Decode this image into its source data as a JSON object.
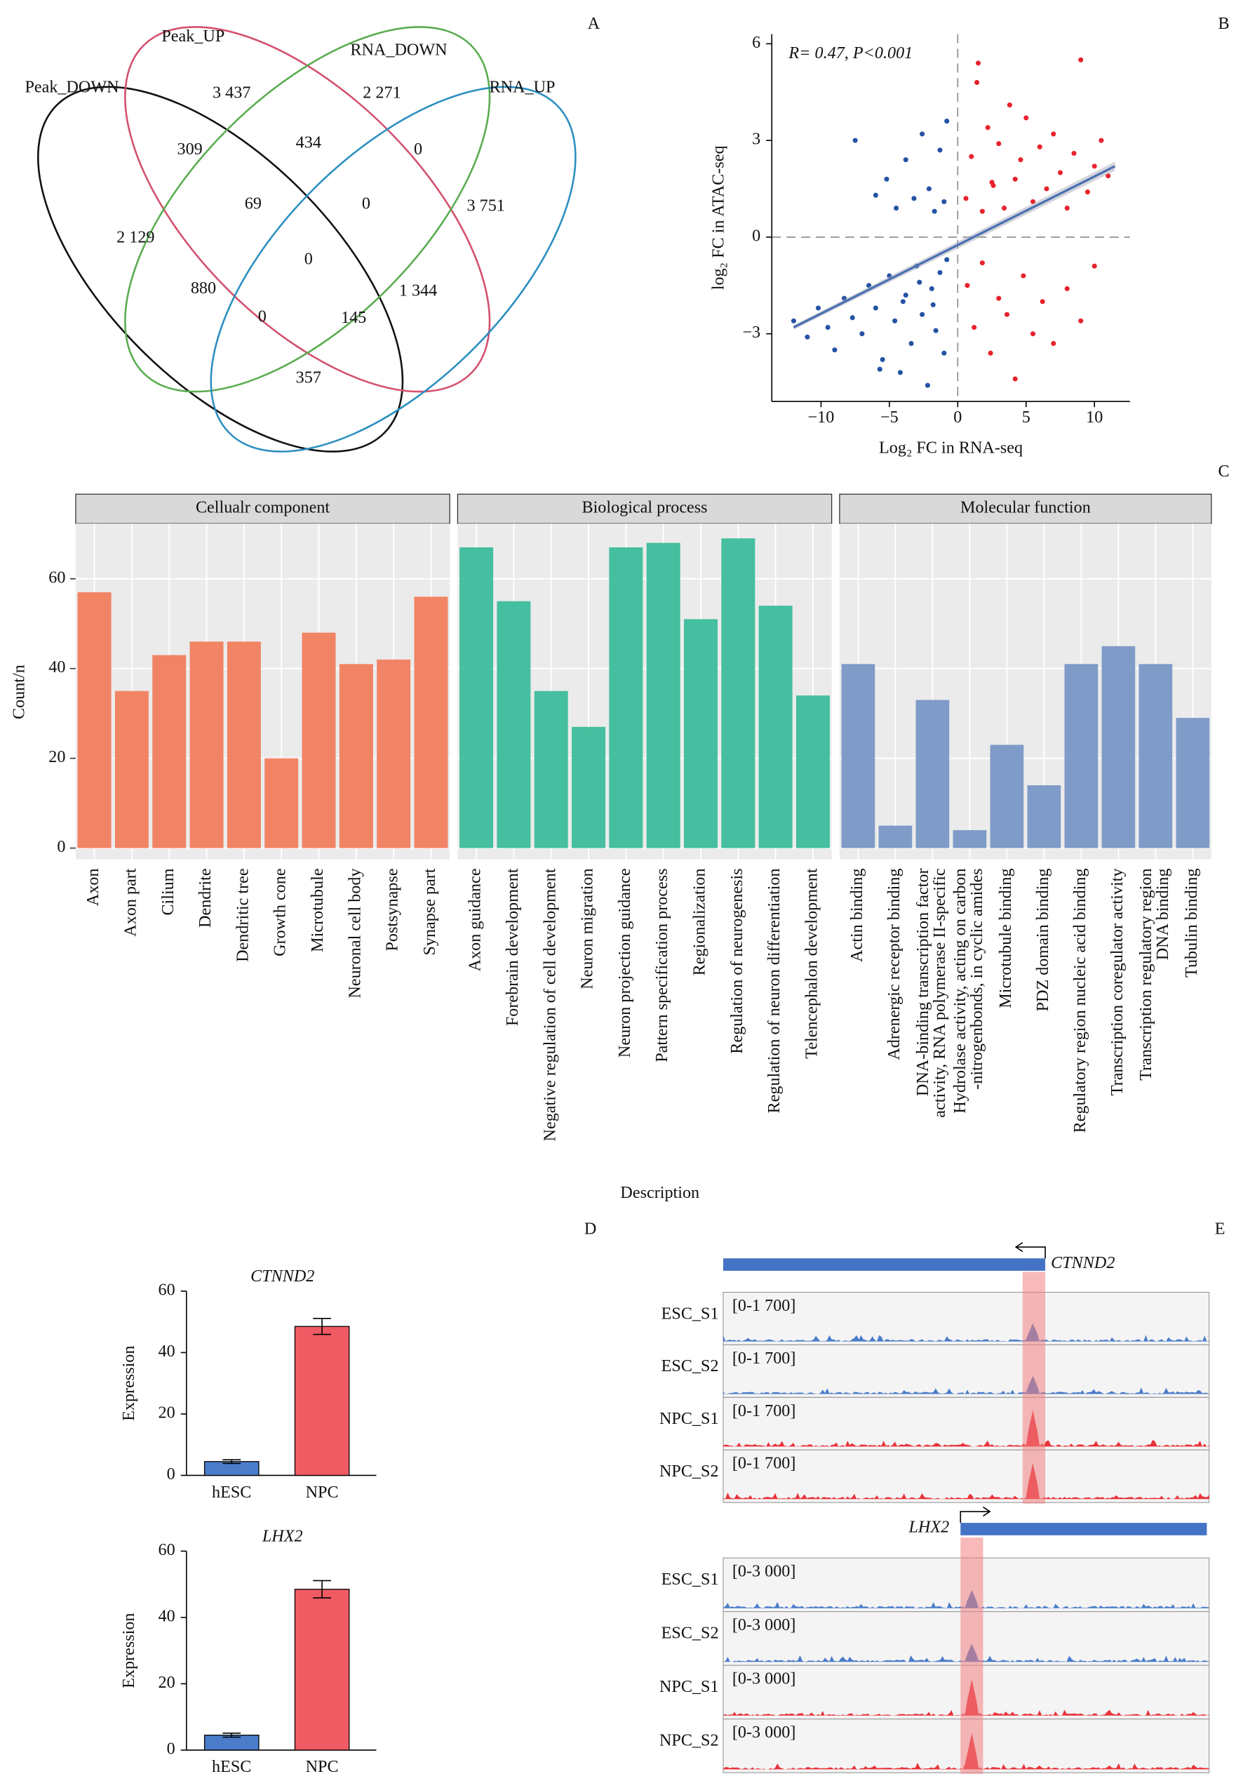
{
  "panel_labels": [
    "A",
    "B",
    "C",
    "D",
    "E"
  ],
  "chart_data": [
    {
      "type": "venn",
      "sets": [
        {
          "name": "Peak_DOWN",
          "color": "#111111"
        },
        {
          "name": "Peak_UP",
          "color": "#d4506e"
        },
        {
          "name": "RNA_DOWN",
          "color": "#5aac50"
        },
        {
          "name": "RNA_UP",
          "color": "#2b8fc0"
        }
      ],
      "values": [
        3437,
        2271,
        309,
        434,
        0,
        69,
        0,
        3751,
        2129,
        0,
        880,
        0,
        145,
        1344,
        357
      ],
      "value_labels": [
        "3 437",
        "2 271",
        "309",
        "434",
        "0",
        "69",
        "0",
        "3 751",
        "2 129",
        "0",
        "880",
        "0",
        "145",
        "1 344",
        "357"
      ]
    },
    {
      "type": "scatter",
      "annotation": "R= 0.47, P<0.001",
      "x_label": "Log₂ FC in RNA-seq",
      "y_label": "log₂ FC in ATAC-seq",
      "xlim": [
        -13.6,
        12.6
      ],
      "ylim": [
        -5.1,
        6.3
      ],
      "xticks": [
        {
          "value": -10,
          "label": "−10"
        },
        {
          "value": -5,
          "label": "−5"
        },
        0,
        5,
        10
      ],
      "yticks": [
        {
          "value": -3,
          "label": "−3"
        },
        0,
        3,
        6
      ],
      "series": [
        {
          "color": "#2453a5",
          "x": [
            -7.5,
            -6,
            -5.2,
            -4.5,
            -3.8,
            -3.2,
            -2.6,
            -2.1,
            -1.7,
            -1.3,
            -1,
            -0.8,
            -12,
            -11,
            -10.2,
            -9.5,
            -9,
            -8.3,
            -7.7,
            -7,
            -6.5,
            -6,
            -5.5,
            -5,
            -4.6,
            -4.2,
            -3.8,
            -3.4,
            -3,
            -2.6,
            -2.2,
            -1.9,
            -1.6,
            -1.3,
            -1,
            -0.8,
            -4,
            -2.8,
            -1.8,
            -5.7
          ],
          "values": [
            3,
            1.3,
            1.8,
            0.9,
            2.4,
            1.2,
            3.2,
            1.5,
            0.8,
            2.7,
            1.1,
            3.6,
            -2.6,
            -3.1,
            -2.2,
            -2.8,
            -3.5,
            -1.9,
            -2.5,
            -3,
            -1.5,
            -2.2,
            -3.8,
            -1.2,
            -2.6,
            -4.2,
            -1.8,
            -3.3,
            -0.9,
            -2.4,
            -4.6,
            -1.6,
            -2.9,
            -1.1,
            -3.6,
            -0.7,
            -2,
            -1.4,
            -2.1,
            -4.1
          ]
        },
        {
          "color": "#e8232b",
          "x": [
            0.6,
            1,
            1.4,
            1.8,
            2.2,
            2.6,
            3,
            3.4,
            3.8,
            4.2,
            4.6,
            5,
            5.5,
            6,
            6.5,
            7,
            7.5,
            8,
            8.5,
            9,
            9.5,
            10,
            10.5,
            11,
            1.5,
            2.5,
            0.7,
            1.2,
            1.8,
            2.4,
            3,
            3.6,
            4.2,
            4.8,
            5.5,
            6.2,
            7,
            8,
            9,
            10
          ],
          "values": [
            1.2,
            2.5,
            4.8,
            0.8,
            3.4,
            1.6,
            2.9,
            0.9,
            4.1,
            1.8,
            2.4,
            3.7,
            1.1,
            2.8,
            1.5,
            3.2,
            2,
            0.9,
            2.6,
            5.5,
            1.4,
            2.2,
            3,
            1.9,
            5.4,
            1.7,
            -1.5,
            -2.8,
            -0.8,
            -3.6,
            -1.9,
            -2.4,
            -4.4,
            -1.2,
            -3,
            -2,
            -3.3,
            -1.6,
            -2.6,
            -0.9
          ]
        }
      ],
      "fit": {
        "color": "#4a6fb0",
        "x": [
          -12,
          11.5
        ],
        "values": [
          -2.8,
          2.2
        ]
      }
    },
    {
      "type": "bar",
      "y_label": "Count/n",
      "x_label": "Description",
      "ylim": [
        -2.5,
        72.3
      ],
      "yticks": [
        0,
        20,
        40,
        60
      ],
      "grid": true,
      "facets": [
        {
          "title": "Cellualr component",
          "color": "#f28466",
          "categories": [
            [
              "Axon"
            ],
            [
              "Axon part"
            ],
            [
              "Cilium"
            ],
            [
              "Dendrite"
            ],
            [
              "Dendritic tree"
            ],
            [
              "Growth cone"
            ],
            [
              "Microtubule"
            ],
            [
              "Neuronal cell body"
            ],
            [
              "Postsynapse"
            ],
            [
              "Synapse part"
            ]
          ],
          "values": [
            57,
            35,
            43,
            46,
            46,
            20,
            48,
            41,
            42,
            56
          ]
        },
        {
          "title": "Biological process",
          "color": "#45bf9f",
          "categories": [
            [
              "Axon guidance"
            ],
            [
              "Forebrain development"
            ],
            [
              "Negative regulation of cell development"
            ],
            [
              "Neuron migration"
            ],
            [
              "Neuron projection guidance"
            ],
            [
              "Pattern specification process"
            ],
            [
              "Regionalization"
            ],
            [
              "Regulation of neurogenesis"
            ],
            [
              "Regulation of neuron differentiation"
            ],
            [
              "Telencephalon development"
            ]
          ],
          "values": [
            67,
            55,
            35,
            27,
            67,
            68,
            51,
            69,
            54,
            34
          ]
        },
        {
          "title": "Molecular function",
          "color": "#7f9bc8",
          "categories": [
            [
              "Actin binding"
            ],
            [
              "Adrenergic receptor binding"
            ],
            [
              "DNA-binding transcription factor",
              "activity, RNA polymerase II-specific"
            ],
            [
              "Hydrolase activity, acting on carbon",
              "-nitrogenbonds, in cyclic amides"
            ],
            [
              "Microtubule binding"
            ],
            [
              "PDZ domain binding"
            ],
            [
              "Regulatory region nucleic acid binding"
            ],
            [
              "Transcription coregulator activity"
            ],
            [
              "Transcription regulatory region",
              "DNA binding"
            ],
            [
              "Tubulin binding"
            ]
          ],
          "values": [
            41,
            5,
            33,
            4,
            23,
            14,
            41,
            45,
            41,
            29
          ]
        }
      ]
    },
    {
      "type": "bar",
      "title": "CTNND2",
      "y_label": "Expression",
      "categories": [
        "hESC",
        "NPC"
      ],
      "values": [
        4.5,
        48.5
      ],
      "errors": [
        0.6,
        2.6
      ],
      "colors": [
        "#4a7cc9",
        "#f05a63"
      ],
      "ylim": [
        0,
        60
      ],
      "yticks": [
        0,
        20,
        40,
        60
      ]
    },
    {
      "type": "bar",
      "title": "LHX2",
      "y_label": "Expression",
      "categories": [
        "hESC",
        "NPC"
      ],
      "values": [
        4.5,
        48.5
      ],
      "errors": [
        0.6,
        2.6
      ],
      "colors": [
        "#4a7cc9",
        "#f05a63"
      ],
      "ylim": [
        0,
        60
      ],
      "yticks": [
        0,
        20,
        40,
        60
      ]
    },
    {
      "type": "tracks",
      "gene_color": "#4472c4",
      "highlight_color": "#f08080",
      "loci": [
        {
          "gene": "CTNND2",
          "tracks": [
            {
              "name": "ESC_S1",
              "range": "[0-1 700]",
              "color": "#4a7cc9"
            },
            {
              "name": "ESC_S2",
              "range": "[0-1 700]",
              "color": "#4a7cc9"
            },
            {
              "name": "NPC_S1",
              "range": "[0-1 700]",
              "color": "#e8323a"
            },
            {
              "name": "NPC_S2",
              "range": "[0-1 700]",
              "color": "#e8323a"
            }
          ]
        },
        {
          "gene": "LHX2",
          "tracks": [
            {
              "name": "ESC_S1",
              "range": "[0-3 000]",
              "color": "#4a7cc9"
            },
            {
              "name": "ESC_S2",
              "range": "[0-3 000]",
              "color": "#4a7cc9"
            },
            {
              "name": "NPC_S1",
              "range": "[0-3 000]",
              "color": "#e8323a"
            },
            {
              "name": "NPC_S2",
              "range": "[0-3 000]",
              "color": "#e8323a"
            }
          ]
        }
      ]
    }
  ]
}
